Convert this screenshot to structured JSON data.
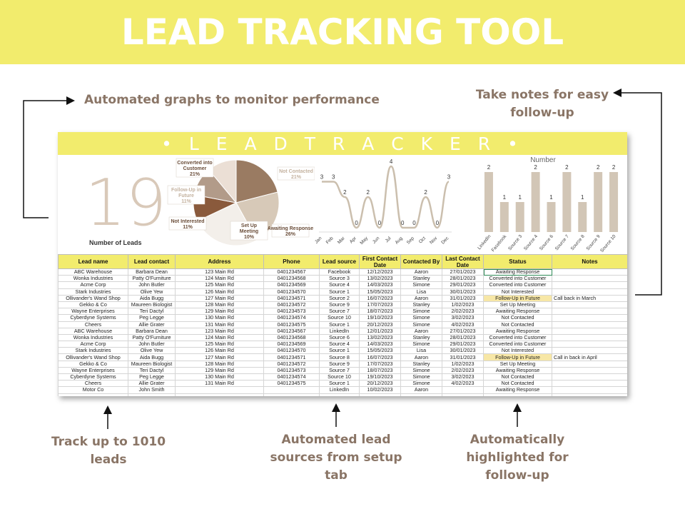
{
  "banner": {
    "title": "LEAD TRACKING TOOL"
  },
  "callouts": {
    "graphs": "Automated graphs to monitor performance",
    "notes_line1": "Take notes for easy",
    "notes_line2": "follow-up",
    "track_line1": "Track up to 1010",
    "track_line2": "leads",
    "sources_line1": "Automated lead",
    "sources_line2": "sources from setup",
    "sources_line3": "tab",
    "highlight_line1": "Automatically",
    "highlight_line2": "highlighted for",
    "highlight_line3": "follow-up"
  },
  "sheet": {
    "title": "• L E A D   T R A C K E R •",
    "lead_count": "19",
    "lead_count_label": "Number of Leads"
  },
  "colors": {
    "accent_yellow": "#f2ec6d",
    "callout_brown": "#8a7566",
    "chart_tan": "#d2c6b6",
    "followup_highlight": "#f7e7a6"
  },
  "chart_data": [
    {
      "type": "pie",
      "labels": [
        "Converted into Customer",
        "Not Contacted",
        "Awaiting Response",
        "Set Up Meeting",
        "Not Interested",
        "Follow-Up in Future"
      ],
      "values": [
        21,
        21,
        26,
        10,
        11,
        11
      ],
      "value_labels": [
        "21%",
        "21%",
        "26%",
        "10%",
        "11%",
        "11%"
      ],
      "colors": [
        "#9a7b62",
        "#d7c9b8",
        "#f3efea",
        "#8a5a3c",
        "#b29b89",
        "#ebdfd5"
      ]
    },
    {
      "type": "line",
      "categories": [
        "Jan",
        "Feb",
        "Mar",
        "Apr",
        "May",
        "Jun",
        "Jul",
        "Aug",
        "Sep",
        "Oct",
        "Nov",
        "Dec"
      ],
      "values": [
        3,
        3,
        2,
        0,
        2,
        0,
        4,
        0,
        0,
        2,
        0,
        3
      ],
      "ylim": [
        0,
        4
      ]
    },
    {
      "type": "bar",
      "title": "Number",
      "categories": [
        "LinkedIn",
        "Facebook",
        "Source 3",
        "Source 4",
        "Source 6",
        "Source 7",
        "Source 8",
        "Source 9",
        "Source 10"
      ],
      "values": [
        2,
        1,
        1,
        2,
        1,
        2,
        1,
        2,
        2
      ],
      "ylim": [
        0,
        2
      ]
    }
  ],
  "table": {
    "headers": [
      "Lead name",
      "Lead contact",
      "Address",
      "Phone",
      "Lead source",
      "First Contact Date",
      "Contacted By",
      "Last Contact Date",
      "Status",
      "Notes"
    ],
    "rows": [
      [
        "ABC Warehouse",
        "Barbara Dean",
        "123 Main Rd",
        "0401234567",
        "Facebook",
        "12/12/2023",
        "Aaron",
        "27/01/2023",
        "Awaiting Response",
        ""
      ],
      [
        "Wonka Industries",
        "Patty O'Furniture",
        "124 Main Rd",
        "0401234568",
        "Source 3",
        "13/02/2023",
        "Stanley",
        "28/01/2023",
        "Converted into Customer",
        ""
      ],
      [
        "Acme Corp",
        "John Butler",
        "125 Main Rd",
        "0401234569",
        "Source 4",
        "14/03/2023",
        "Simone",
        "29/01/2023",
        "Converted into Customer",
        ""
      ],
      [
        "Stark Industries",
        "Olive Yew",
        "126 Main Rd",
        "0401234570",
        "Source 1",
        "15/05/2023",
        "Lisa",
        "30/01/2023",
        "Not Interested",
        ""
      ],
      [
        "Ollivander's Wand Shop",
        "Aida Bugg",
        "127 Main Rd",
        "0401234571",
        "Source 2",
        "16/07/2023",
        "Aaron",
        "31/01/2023",
        "Follow-Up in Future",
        "Call back in March"
      ],
      [
        "Gekko & Co",
        "Maureen Biologist",
        "128 Main Rd",
        "0401234572",
        "Source 9",
        "17/07/2023",
        "Stanley",
        "1/02/2023",
        "Set Up Meeting",
        ""
      ],
      [
        "Wayne Enterprises",
        "Teri Dactyl",
        "129 Main Rd",
        "0401234573",
        "Source 7",
        "18/07/2023",
        "Simone",
        "2/02/2023",
        "Awaiting Response",
        ""
      ],
      [
        "Cyberdyne Systems",
        "Peg Legge",
        "130 Main Rd",
        "0401234574",
        "Source 10",
        "19/10/2023",
        "Simone",
        "3/02/2023",
        "Not Contacted",
        ""
      ],
      [
        "Cheers",
        "Allie Grater",
        "131 Main Rd",
        "0401234575",
        "Source 1",
        "20/12/2023",
        "Simone",
        "4/02/2023",
        "Not Contacted",
        ""
      ],
      [
        "ABC Warehouse",
        "Barbara Dean",
        "123 Main Rd",
        "0401234567",
        "LinkedIn",
        "12/01/2023",
        "Aaron",
        "27/01/2023",
        "Awaiting Response",
        ""
      ],
      [
        "Wonka Industries",
        "Patty O'Furniture",
        "124 Main Rd",
        "0401234568",
        "Source 6",
        "13/02/2023",
        "Stanley",
        "28/01/2023",
        "Converted into Customer",
        ""
      ],
      [
        "Acme Corp",
        "John Butler",
        "125 Main Rd",
        "0401234569",
        "Source 4",
        "14/03/2023",
        "Simone",
        "29/01/2023",
        "Converted into Customer",
        ""
      ],
      [
        "Stark Industries",
        "Olive Yew",
        "126 Main Rd",
        "0401234570",
        "Source 1",
        "15/05/2023",
        "Lisa",
        "30/01/2023",
        "Not Interested",
        ""
      ],
      [
        "Ollivander's Wand Shop",
        "Aida Bugg",
        "127 Main Rd",
        "0401234571",
        "Source 8",
        "16/07/2023",
        "Aaron",
        "31/01/2023",
        "Follow-Up in Future",
        "Call in back in April"
      ],
      [
        "Gekko & Co",
        "Maureen Biologist",
        "128 Main Rd",
        "0401234572",
        "Source 9",
        "17/07/2023",
        "Stanley",
        "1/02/2023",
        "Set Up Meeting",
        ""
      ],
      [
        "Wayne Enterprises",
        "Teri Dactyl",
        "129 Main Rd",
        "0401234573",
        "Source 7",
        "18/07/2023",
        "Simone",
        "2/02/2023",
        "Awaiting Response",
        ""
      ],
      [
        "Cyberdyne Systems",
        "Peg Legge",
        "130 Main Rd",
        "0401234574",
        "Source 10",
        "19/10/2023",
        "Simone",
        "3/02/2023",
        "Not Contacted",
        ""
      ],
      [
        "Cheers",
        "Allie Grater",
        "131 Main Rd",
        "0401234575",
        "Source 1",
        "20/12/2023",
        "Simone",
        "4/02/2023",
        "Not Contacted",
        ""
      ],
      [
        "Motor Co",
        "John Smith",
        "",
        "",
        "LinkedIn",
        "10/02/2023",
        "Aaron",
        "",
        "Awaiting Response",
        ""
      ],
      [
        "",
        "",
        "",
        "",
        "",
        "",
        "",
        "",
        "",
        ""
      ]
    ]
  }
}
